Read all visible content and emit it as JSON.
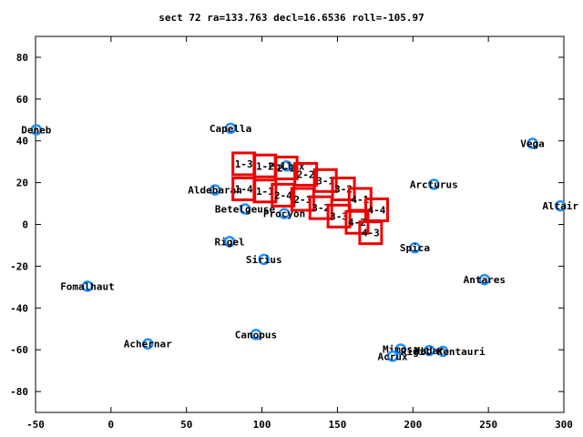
{
  "chart_data": {
    "type": "scatter",
    "title": "sect 72 ra=133.763 decl=16.6536 roll=-105.97",
    "xlabel": "",
    "ylabel": "",
    "xlim": [
      -50,
      300
    ],
    "ylim": [
      -90,
      90
    ],
    "xticks": [
      -50,
      0,
      50,
      100,
      150,
      200,
      250,
      300
    ],
    "yticks": [
      -80,
      -60,
      -40,
      -20,
      0,
      20,
      40,
      60,
      80
    ],
    "grid": false,
    "star_color": "#1e90ff",
    "field_color": "#ee0000",
    "stars": [
      {
        "name": "Deneb",
        "x": -49.5,
        "y": 45.3
      },
      {
        "name": "Capella",
        "x": 79.2,
        "y": 46.0
      },
      {
        "name": "Vega",
        "x": 279.2,
        "y": 38.8
      },
      {
        "name": "Pollux",
        "x": 116.3,
        "y": 28.0
      },
      {
        "name": "Arcturus",
        "x": 213.9,
        "y": 19.2
      },
      {
        "name": "Aldebaran",
        "x": 68.9,
        "y": 16.5
      },
      {
        "name": "Altair",
        "x": 297.7,
        "y": 8.9
      },
      {
        "name": "Betelgeuse",
        "x": 88.8,
        "y": 7.4
      },
      {
        "name": "Procyon",
        "x": 114.8,
        "y": 5.2
      },
      {
        "name": "Rigel",
        "x": 78.6,
        "y": -8.2
      },
      {
        "name": "Spica",
        "x": 201.3,
        "y": -11.2
      },
      {
        "name": "Sirius",
        "x": 101.3,
        "y": -16.7
      },
      {
        "name": "Antares",
        "x": 247.4,
        "y": -26.4
      },
      {
        "name": "Fomalhaut",
        "x": -15.6,
        "y": -29.6
      },
      {
        "name": "Canopus",
        "x": 96.0,
        "y": -52.7
      },
      {
        "name": "Achernar",
        "x": 24.4,
        "y": -57.2
      },
      {
        "name": "Mimosa",
        "x": 191.9,
        "y": -59.7
      },
      {
        "name": "Hadar",
        "x": 210.9,
        "y": -60.4
      },
      {
        "name": "Rigil Kentaurus",
        "x": 219.9,
        "y": -60.8
      },
      {
        "name": "Acrux",
        "x": 186.6,
        "y": -63.1
      }
    ],
    "star_label_text": {
      "Deneb": "Deneb",
      "Capella": "Capella",
      "Vega": "Vega",
      "Pollux": "Pollux",
      "Arcturus": "Arcturus",
      "Aldebaran": "Aldebaran",
      "Altair": "Altair",
      "Betelgeuse": "Betelgeuse",
      "Procyon": "Procyon",
      "Rigel": "Rigel",
      "Spica": "Spica",
      "Sirius": "Sirius",
      "Antares": "Antares",
      "Fomalhaut": "Fomalhaut",
      "Canopus": "Canopus",
      "Achernar": "Achernar",
      "Mimosa": "Mimosa",
      "Hadar": "Hadar",
      "Rigil Kentaurus": "Rigil Kentauri",
      "Acrux": "Acrux"
    },
    "fields": [
      {
        "label": "1-3",
        "x": 88.0,
        "y": 29.0
      },
      {
        "label": "1-2",
        "x": 102.0,
        "y": 28.0
      },
      {
        "label": "2-1",
        "x": 116.0,
        "y": 27.0
      },
      {
        "label": "2-2",
        "x": 129.0,
        "y": 24.0
      },
      {
        "label": "3-1",
        "x": 142.0,
        "y": 21.0
      },
      {
        "label": "3-2",
        "x": 154.0,
        "y": 17.0
      },
      {
        "label": "4-1",
        "x": 165.0,
        "y": 12.0
      },
      {
        "label": "4-4",
        "x": 176.0,
        "y": 7.0
      },
      {
        "label": "1-4",
        "x": 88.0,
        "y": 17.0
      },
      {
        "label": "1-1",
        "x": 102.0,
        "y": 16.0
      },
      {
        "label": "2-4",
        "x": 114.0,
        "y": 14.0
      },
      {
        "label": "2-1",
        "x": 127.0,
        "y": 12.0
      },
      {
        "label": "3-2",
        "x": 139.0,
        "y": 8.0
      },
      {
        "label": "3-3",
        "x": 151.0,
        "y": 4.0
      },
      {
        "label": "4-2",
        "x": 163.0,
        "y": 1.0
      },
      {
        "label": "4-3",
        "x": 172.0,
        "y": -4.0
      }
    ]
  }
}
